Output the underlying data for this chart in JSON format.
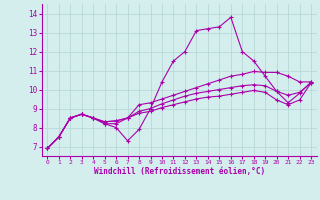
{
  "xlabel": "Windchill (Refroidissement éolien,°C)",
  "bg_color": "#d4eeed",
  "grid_color": "#b8d8d8",
  "line_color": "#aa00aa",
  "xlim": [
    -0.5,
    23.5
  ],
  "ylim": [
    6.5,
    14.5
  ],
  "xticks": [
    0,
    1,
    2,
    3,
    4,
    5,
    6,
    7,
    8,
    9,
    10,
    11,
    12,
    13,
    14,
    15,
    16,
    17,
    18,
    19,
    20,
    21,
    22,
    23
  ],
  "yticks": [
    7,
    8,
    9,
    10,
    11,
    12,
    13,
    14
  ],
  "series": [
    [
      6.9,
      7.5,
      8.5,
      8.7,
      8.5,
      8.2,
      8.0,
      7.3,
      7.9,
      9.0,
      10.4,
      11.5,
      12.0,
      13.1,
      13.2,
      13.3,
      13.8,
      12.0,
      11.5,
      10.7,
      9.9,
      9.3,
      9.8,
      10.4
    ],
    [
      6.9,
      7.5,
      8.5,
      8.7,
      8.5,
      8.2,
      8.2,
      8.5,
      9.2,
      9.3,
      9.5,
      9.7,
      9.9,
      10.1,
      10.3,
      10.5,
      10.7,
      10.8,
      10.95,
      10.9,
      10.9,
      10.7,
      10.4,
      10.4
    ],
    [
      6.9,
      7.5,
      8.5,
      8.7,
      8.5,
      8.3,
      8.35,
      8.5,
      8.85,
      9.0,
      9.25,
      9.45,
      9.65,
      9.8,
      9.9,
      10.0,
      10.1,
      10.2,
      10.25,
      10.2,
      9.9,
      9.7,
      9.85,
      10.35
    ],
    [
      6.9,
      7.5,
      8.5,
      8.7,
      8.5,
      8.3,
      8.35,
      8.5,
      8.75,
      8.85,
      9.05,
      9.2,
      9.35,
      9.5,
      9.6,
      9.65,
      9.75,
      9.85,
      9.95,
      9.85,
      9.45,
      9.2,
      9.45,
      10.35
    ]
  ]
}
